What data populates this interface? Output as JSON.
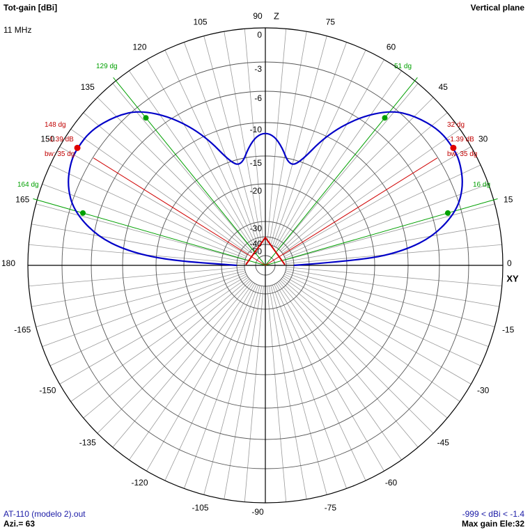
{
  "header": {
    "title": "Tot-gain [dBi]",
    "frequency": "11 MHz",
    "plane": "Vertical plane"
  },
  "footer": {
    "file": "AT-110 (modelo 2).out",
    "azimuth": "Azi.= 63",
    "range": "-999 < dBi < -1.4",
    "max_gain": "Max gain Ele:32"
  },
  "axes": {
    "top": "Z",
    "right": "XY"
  },
  "colors": {
    "pattern": "#0000c8",
    "beamwidth": "#d00000",
    "green_marks": "#00a000",
    "grid": "#a0a0a0"
  },
  "chart_data": {
    "type": "polar",
    "angle_unit": "deg",
    "radial_unit": "dBi",
    "ring_labels": [
      "0",
      "-3",
      "-6",
      "-10",
      "-15",
      "-20",
      "-30",
      "-40",
      "-50"
    ],
    "ring_values": [
      0,
      -3,
      -6,
      -10,
      -15,
      -20,
      -30,
      -40,
      -50
    ],
    "angle_labels": [
      "0",
      "15",
      "30",
      "45",
      "60",
      "75",
      "90",
      "105",
      "120",
      "135",
      "150",
      "165",
      "180",
      "-165",
      "-150",
      "-135",
      "-120",
      "-105",
      "-90",
      "-75",
      "-60",
      "-45",
      "-30",
      "-15"
    ],
    "angle_values": [
      0,
      15,
      30,
      45,
      60,
      75,
      90,
      105,
      120,
      135,
      150,
      165,
      180,
      -165,
      -150,
      -135,
      -120,
      -105,
      -90,
      -75,
      -60,
      -45,
      -30,
      -15
    ],
    "pattern": {
      "elevation": [
        0,
        3,
        6,
        10,
        16,
        22,
        28,
        32,
        38,
        45,
        51,
        58,
        65,
        72,
        77,
        82,
        86,
        90
      ],
      "gain": [
        -40,
        -17,
        -10.5,
        -6.3,
        -3.4,
        -2.1,
        -1.5,
        -1.39,
        -1.5,
        -2.3,
        -3.4,
        -6,
        -10,
        -15.5,
        -16,
        -13.5,
        -12,
        -11.5
      ]
    },
    "max_gain": {
      "value": -1.39,
      "elevations": [
        32,
        148
      ]
    },
    "beamwidth": {
      "value": 35,
      "lines": [
        32,
        148
      ]
    },
    "half_power_lines": [
      16,
      51,
      129,
      164
    ],
    "annotations": {
      "left": {
        "angle": "148 dg",
        "gain": "-1.39 dB",
        "bw": "bw: 35 dg"
      },
      "right": {
        "angle": "32 dg",
        "gain": "-1.39 dB",
        "bw": "bw: 35 dg"
      },
      "green": [
        "129 dg",
        "51 dg",
        "164 dg",
        "16 dg"
      ]
    }
  }
}
